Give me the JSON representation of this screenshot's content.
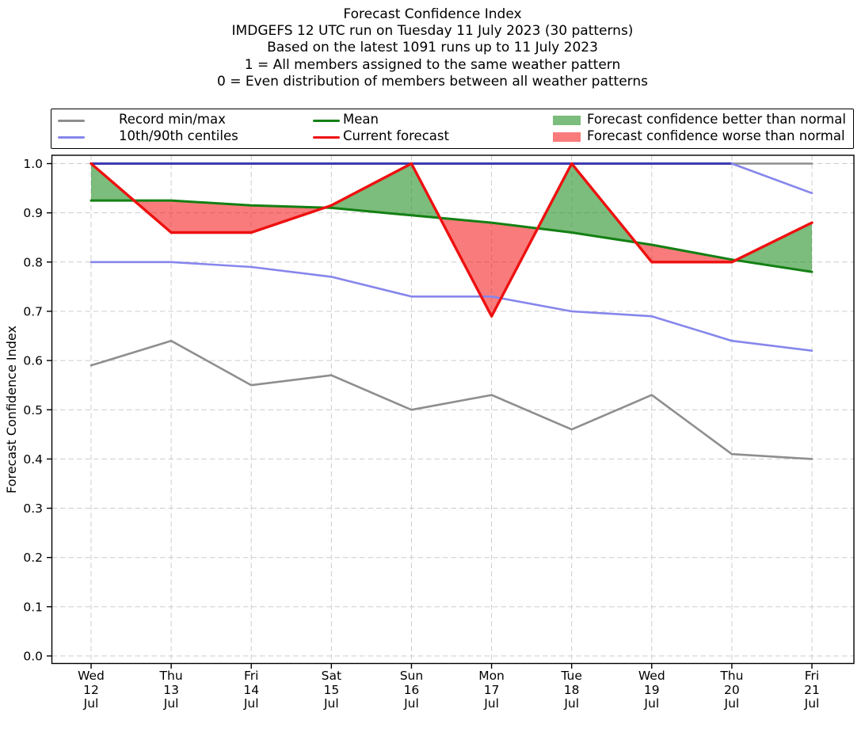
{
  "title": {
    "line1": "Forecast Confidence Index",
    "line2": "IMDGEFS 12 UTC run on Tuesday 11 July 2023 (30 patterns)",
    "line3": "Based on the latest 1091 runs up to 11 July 2023",
    "line4": "1 = All members assigned to the same weather pattern",
    "line5": "0 = Even distribution of members between all weather patterns"
  },
  "legend": {
    "items": [
      {
        "label": "Record min/max",
        "type": "line",
        "color": "#8e8e8e"
      },
      {
        "label": "10th/90th centiles",
        "type": "line",
        "color": "#8686ec"
      },
      {
        "label": "Mean",
        "type": "line",
        "color": "#138013"
      },
      {
        "label": "Current forecast",
        "type": "line",
        "color": "#ee1010"
      },
      {
        "label": "Forecast confidence better than normal",
        "type": "patch",
        "color": "#7cbc7c"
      },
      {
        "label": "Forecast confidence worse than normal",
        "type": "patch",
        "color": "#f97b7b"
      }
    ]
  },
  "chart_data": {
    "type": "line",
    "title": "Forecast Confidence Index",
    "xlabel": "",
    "ylabel": "Forecast Confidence Index",
    "ylim": [
      0.0,
      1.0
    ],
    "yticks": [
      0.0,
      0.1,
      0.2,
      0.3,
      0.4,
      0.5,
      0.6,
      0.7,
      0.8,
      0.9,
      1.0
    ],
    "grid": true,
    "legend_position": "top",
    "categories": [
      {
        "day": "Wed",
        "date": "12",
        "month": "Jul"
      },
      {
        "day": "Thu",
        "date": "13",
        "month": "Jul"
      },
      {
        "day": "Fri",
        "date": "14",
        "month": "Jul"
      },
      {
        "day": "Sat",
        "date": "15",
        "month": "Jul"
      },
      {
        "day": "Sun",
        "date": "16",
        "month": "Jul"
      },
      {
        "day": "Mon",
        "date": "17",
        "month": "Jul"
      },
      {
        "day": "Tue",
        "date": "18",
        "month": "Jul"
      },
      {
        "day": "Wed",
        "date": "19",
        "month": "Jul"
      },
      {
        "day": "Thu",
        "date": "20",
        "month": "Jul"
      },
      {
        "day": "Fri",
        "date": "21",
        "month": "Jul"
      }
    ],
    "series": [
      {
        "name": "Record max",
        "values": [
          1.0,
          1.0,
          1.0,
          1.0,
          1.0,
          1.0,
          1.0,
          1.0,
          1.0,
          1.0
        ]
      },
      {
        "name": "90th centile",
        "values": [
          1.0,
          1.0,
          1.0,
          1.0,
          1.0,
          1.0,
          1.0,
          1.0,
          1.0,
          0.94
        ]
      },
      {
        "name": "Mean",
        "values": [
          0.925,
          0.925,
          0.915,
          0.91,
          0.895,
          0.88,
          0.86,
          0.835,
          0.805,
          0.78
        ]
      },
      {
        "name": "Current forecast",
        "values": [
          1.0,
          0.86,
          0.86,
          0.915,
          1.0,
          0.69,
          1.0,
          0.8,
          0.8,
          0.88
        ]
      },
      {
        "name": "10th centile",
        "values": [
          0.8,
          0.8,
          0.79,
          0.77,
          0.73,
          0.73,
          0.7,
          0.69,
          0.64,
          0.62
        ]
      },
      {
        "name": "Record min",
        "values": [
          0.59,
          0.64,
          0.55,
          0.57,
          0.5,
          0.53,
          0.46,
          0.53,
          0.41,
          0.4
        ]
      }
    ],
    "colors": {
      "record": "#8e8e8e",
      "centile": "#8686ec",
      "centile_overlap": "#3c3cb0",
      "mean": "#138013",
      "current": "#ee1010",
      "better_fill": "rgba(30,140,30,0.58)",
      "worse_fill": "rgba(244,15,15,0.55)",
      "grid": "#cccccc"
    }
  }
}
